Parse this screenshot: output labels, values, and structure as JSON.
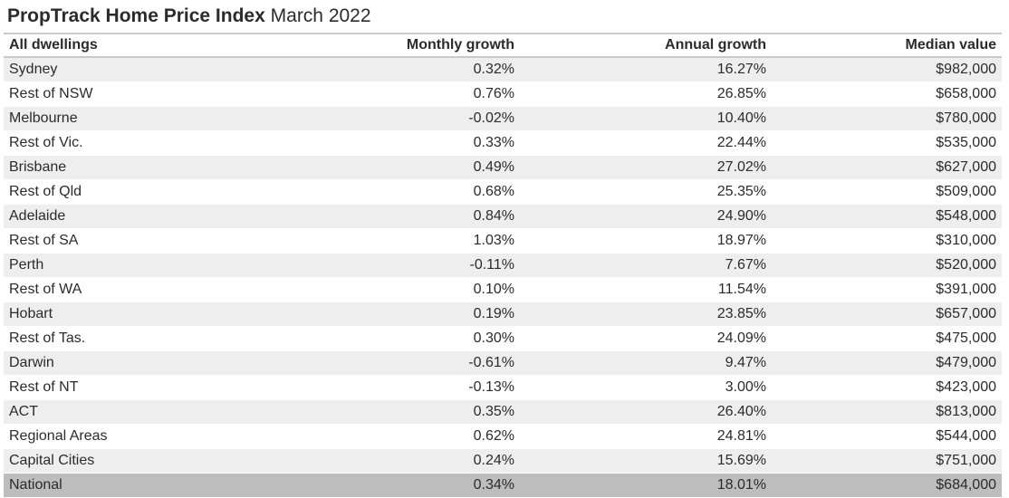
{
  "title": {
    "brand": "PropTrack Home Price Index",
    "period": "March 2022"
  },
  "chart_data": {
    "type": "table",
    "columns": [
      "All dwellings",
      "Monthly growth",
      "Annual growth",
      "Median value"
    ],
    "rows": [
      [
        "Sydney",
        "0.32%",
        "16.27%",
        "$982,000"
      ],
      [
        "Rest of NSW",
        "0.76%",
        "26.85%",
        "$658,000"
      ],
      [
        "Melbourne",
        "-0.02%",
        "10.40%",
        "$780,000"
      ],
      [
        "Rest of Vic.",
        "0.33%",
        "22.44%",
        "$535,000"
      ],
      [
        "Brisbane",
        "0.49%",
        "27.02%",
        "$627,000"
      ],
      [
        "Rest of Qld",
        "0.68%",
        "25.35%",
        "$509,000"
      ],
      [
        "Adelaide",
        "0.84%",
        "24.90%",
        "$548,000"
      ],
      [
        "Rest of SA",
        "1.03%",
        "18.97%",
        "$310,000"
      ],
      [
        "Perth",
        "-0.11%",
        "7.67%",
        "$520,000"
      ],
      [
        "Rest of WA",
        "0.10%",
        "11.54%",
        "$391,000"
      ],
      [
        "Hobart",
        "0.19%",
        "23.85%",
        "$657,000"
      ],
      [
        "Rest of Tas.",
        "0.30%",
        "24.09%",
        "$475,000"
      ],
      [
        "Darwin",
        "-0.61%",
        "9.47%",
        "$479,000"
      ],
      [
        "Rest of NT",
        "-0.13%",
        "3.00%",
        "$423,000"
      ],
      [
        "ACT",
        "0.35%",
        "26.40%",
        "$813,000"
      ],
      [
        "Regional Areas",
        "0.62%",
        "24.81%",
        "$544,000"
      ],
      [
        "Capital Cities",
        "0.24%",
        "15.69%",
        "$751,000"
      ],
      [
        "National",
        "0.34%",
        "18.01%",
        "$684,000"
      ]
    ],
    "highlight_row": "National",
    "colors": {
      "header_rule": "#c9c9c9",
      "band_shade": "#eeeeee",
      "highlight_shade": "#bdbdbd",
      "text": "#2b2b2b"
    }
  }
}
